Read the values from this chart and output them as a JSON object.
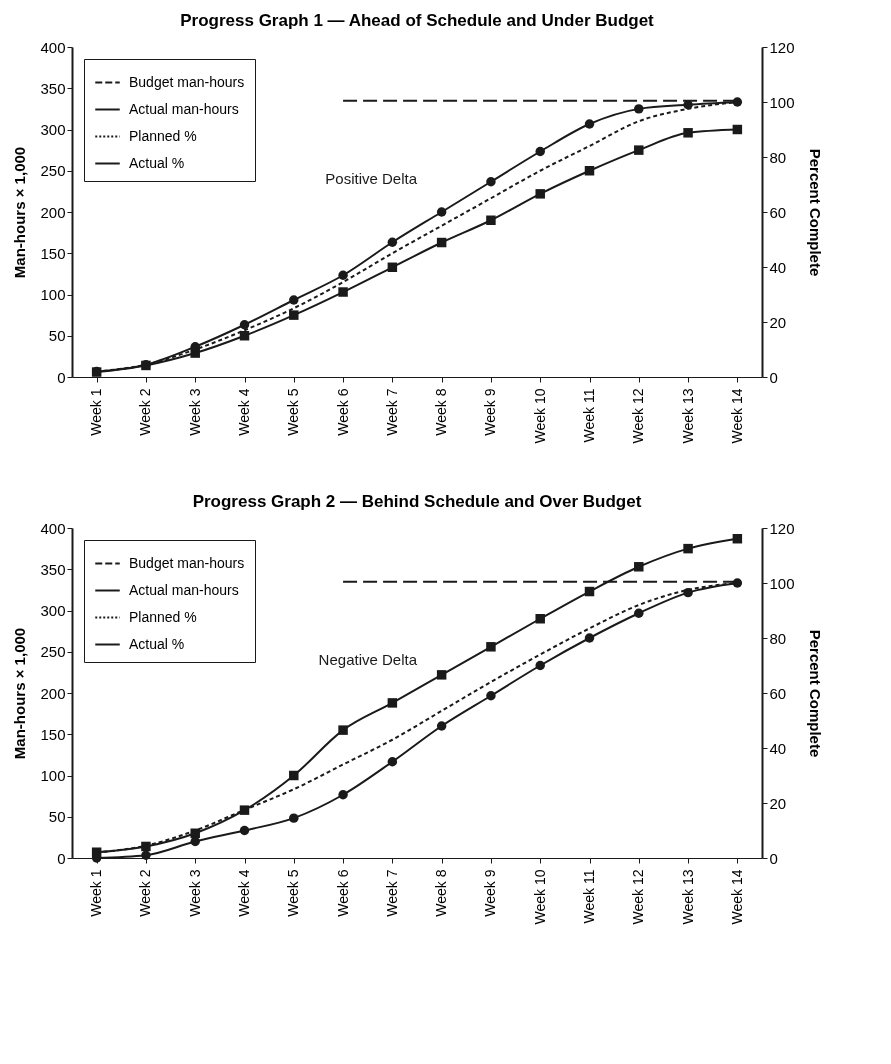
{
  "chart_data": [
    {
      "type": "line",
      "title": "Progress Graph 1 — Ahead of Schedule and Under Budget",
      "ylabel": "Man-hours × 1,000",
      "y2label": "Percent Complete",
      "categories": [
        "Week 1",
        "Week 2",
        "Week 3",
        "Week 4",
        "Week 5",
        "Week 6",
        "Week 7",
        "Week 8",
        "Week 9",
        "Week 10",
        "Week 11",
        "Week 12",
        "Week 13",
        "Week 14"
      ],
      "ylim": [
        0,
        400
      ],
      "yticks": [
        0,
        50,
        100,
        150,
        200,
        250,
        300,
        350,
        400
      ],
      "y2lim": [
        0,
        120
      ],
      "y2ticks": [
        0,
        20,
        40,
        60,
        80,
        100,
        120
      ],
      "legend": "top left",
      "annotations": [
        "Positive Delta"
      ],
      "series": [
        {
          "name": "Budget man-hours",
          "color": "#1a1a1a",
          "line_style": "dashed",
          "marker": "none",
          "values": [
            null,
            null,
            null,
            null,
            null,
            335,
            335,
            335,
            335,
            335,
            335,
            335,
            335,
            335
          ]
        },
        {
          "name": "Actual man-hours",
          "color": "#1a1a1a",
          "line_style": "solid",
          "marker": "square",
          "values": [
            6,
            14,
            29,
            50,
            75,
            103,
            133,
            163,
            190,
            222,
            250,
            275,
            296,
            300
          ]
        },
        {
          "name": "Planned %",
          "color": "#1a1a1a",
          "line_style": "dotted",
          "marker": "none",
          "axis": "y2",
          "values": [
            2,
            4.5,
            10,
            17,
            25,
            34.5,
            45,
            55,
            65,
            75,
            84,
            93,
            97.5,
            100
          ]
        },
        {
          "name": "Actual %",
          "color": "#1a1a1a",
          "line_style": "solid",
          "marker": "circle",
          "axis": "y2",
          "values": [
            2,
            4.5,
            11,
            19,
            28,
            37,
            49,
            60,
            71,
            82,
            92,
            97.5,
            99,
            100
          ]
        }
      ]
    },
    {
      "type": "line",
      "title": "Progress Graph 2 — Behind Schedule and Over Budget",
      "ylabel": "Man-hours × 1,000",
      "y2label": "Percent Complete",
      "categories": [
        "Week 1",
        "Week 2",
        "Week 3",
        "Week 4",
        "Week 5",
        "Week 6",
        "Week 7",
        "Week 8",
        "Week 9",
        "Week 10",
        "Week 11",
        "Week 12",
        "Week 13",
        "Week 14"
      ],
      "ylim": [
        0,
        400
      ],
      "yticks": [
        0,
        50,
        100,
        150,
        200,
        250,
        300,
        350,
        400
      ],
      "y2lim": [
        0,
        120
      ],
      "y2ticks": [
        0,
        20,
        40,
        60,
        80,
        100,
        120
      ],
      "legend": "top left",
      "annotations": [
        "Negative Delta"
      ],
      "series": [
        {
          "name": "Budget man-hours",
          "color": "#1a1a1a",
          "line_style": "dashed",
          "marker": "none",
          "values": [
            null,
            null,
            null,
            null,
            null,
            335,
            335,
            335,
            335,
            335,
            335,
            335,
            335,
            335
          ]
        },
        {
          "name": "Actual man-hours",
          "color": "#1a1a1a",
          "line_style": "solid",
          "marker": "square",
          "values": [
            7,
            14,
            30,
            58,
            100,
            155,
            188,
            222,
            256,
            290,
            323,
            353,
            375,
            387
          ]
        },
        {
          "name": "Planned %",
          "color": "#1a1a1a",
          "line_style": "dotted",
          "marker": "none",
          "axis": "y2",
          "values": [
            2,
            4.5,
            10,
            17.5,
            25,
            34,
            43,
            53.5,
            64,
            74,
            83.5,
            92,
            97.5,
            100
          ]
        },
        {
          "name": "Actual %",
          "color": "#1a1a1a",
          "line_style": "solid",
          "marker": "circle",
          "axis": "y2",
          "values": [
            0,
            1,
            6,
            10,
            14.5,
            23,
            35,
            48,
            59,
            70,
            80,
            89,
            96.5,
            100
          ]
        }
      ]
    }
  ]
}
